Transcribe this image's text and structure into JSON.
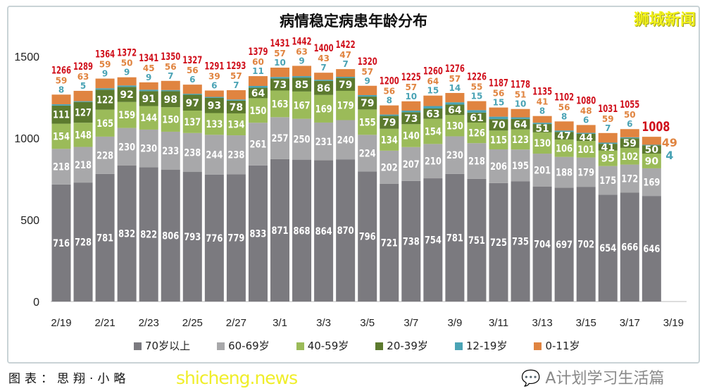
{
  "brand": "狮城新闻",
  "watermark_site": "shicheng.news",
  "watermark_account": "A计划学习生活篇",
  "caption": "图表：思翔·小略",
  "colors": {
    "70+": "#7b7a7f",
    "60-69": "#a8a8aa",
    "40-59": "#9bbb59",
    "20-39": "#5c7a2e",
    "12-19": "#4aa3b5",
    "0-11": "#e08440",
    "total": "#d0101c"
  },
  "chart_data": {
    "type": "bar",
    "stacked": true,
    "title": "病情稳定病患年龄分布",
    "xlabel": "",
    "ylabel": "",
    "ylim": [
      0,
      1500
    ],
    "yticks": [
      "0",
      "500",
      "1000",
      "1500"
    ],
    "grid": false,
    "legend": "bottom",
    "categories": [
      "2/19",
      "2/20",
      "2/21",
      "2/22",
      "2/23",
      "2/24",
      "2/25",
      "2/26",
      "2/27",
      "2/28",
      "3/1",
      "3/2",
      "3/3",
      "3/4",
      "3/5",
      "3/6",
      "3/7",
      "3/8",
      "3/9",
      "3/10",
      "3/11",
      "3/12",
      "3/13",
      "3/14",
      "3/15",
      "3/16",
      "3/17",
      "3/18"
    ],
    "xtick_labels": [
      "2/19",
      "2/21",
      "2/23",
      "2/25",
      "2/27",
      "3/1",
      "3/3",
      "3/5",
      "3/7",
      "3/9",
      "3/11",
      "3/13",
      "3/15",
      "3/17",
      "3/19"
    ],
    "series": [
      {
        "name": "70岁以上",
        "values": [
          716,
          728,
          781,
          832,
          822,
          806,
          793,
          776,
          779,
          833,
          871,
          868,
          864,
          870,
          796,
          721,
          738,
          754,
          781,
          751,
          725,
          735,
          704,
          697,
          702,
          654,
          666,
          646
        ]
      },
      {
        "name": "60-69岁",
        "values": [
          218,
          218,
          228,
          230,
          230,
          233,
          238,
          244,
          238,
          261,
          257,
          250,
          231,
          240,
          224,
          202,
          207,
          210,
          230,
          218,
          206,
          195,
          201,
          188,
          179,
          175,
          172,
          169
        ]
      },
      {
        "name": "40-59岁",
        "values": [
          154,
          148,
          165,
          159,
          144,
          150,
          137,
          133,
          134,
          150,
          163,
          167,
          169,
          179,
          155,
          134,
          140,
          154,
          130,
          126,
          115,
          123,
          130,
          106,
          101,
          95,
          102,
          90
        ]
      },
      {
        "name": "20-39岁",
        "values": [
          111,
          127,
          122,
          92,
          91,
          98,
          97,
          93,
          78,
          64,
          73,
          85,
          86,
          79,
          79,
          79,
          73,
          63,
          64,
          61,
          70,
          64,
          51,
          47,
          44,
          41,
          59,
          50
        ]
      },
      {
        "name": "12-19岁",
        "values": [
          8,
          5,
          9,
          9,
          9,
          7,
          6,
          6,
          7,
          11,
          10,
          9,
          7,
          7,
          9,
          8,
          10,
          15,
          14,
          15,
          15,
          10,
          8,
          8,
          6,
          7,
          6,
          4
        ]
      },
      {
        "name": "0-11岁",
        "values": [
          59,
          63,
          59,
          50,
          45,
          56,
          56,
          39,
          57,
          60,
          57,
          63,
          43,
          47,
          57,
          56,
          57,
          64,
          57,
          55,
          56,
          51,
          41,
          56,
          48,
          59,
          50,
          49
        ]
      }
    ],
    "totals": [
      1266,
      1289,
      1364,
      1372,
      1341,
      1350,
      1327,
      1291,
      1293,
      1379,
      1431,
      1442,
      1400,
      1422,
      1320,
      1200,
      1225,
      1260,
      1276,
      1226,
      1187,
      1178,
      1135,
      1102,
      1080,
      1031,
      1055,
      1008
    ]
  }
}
